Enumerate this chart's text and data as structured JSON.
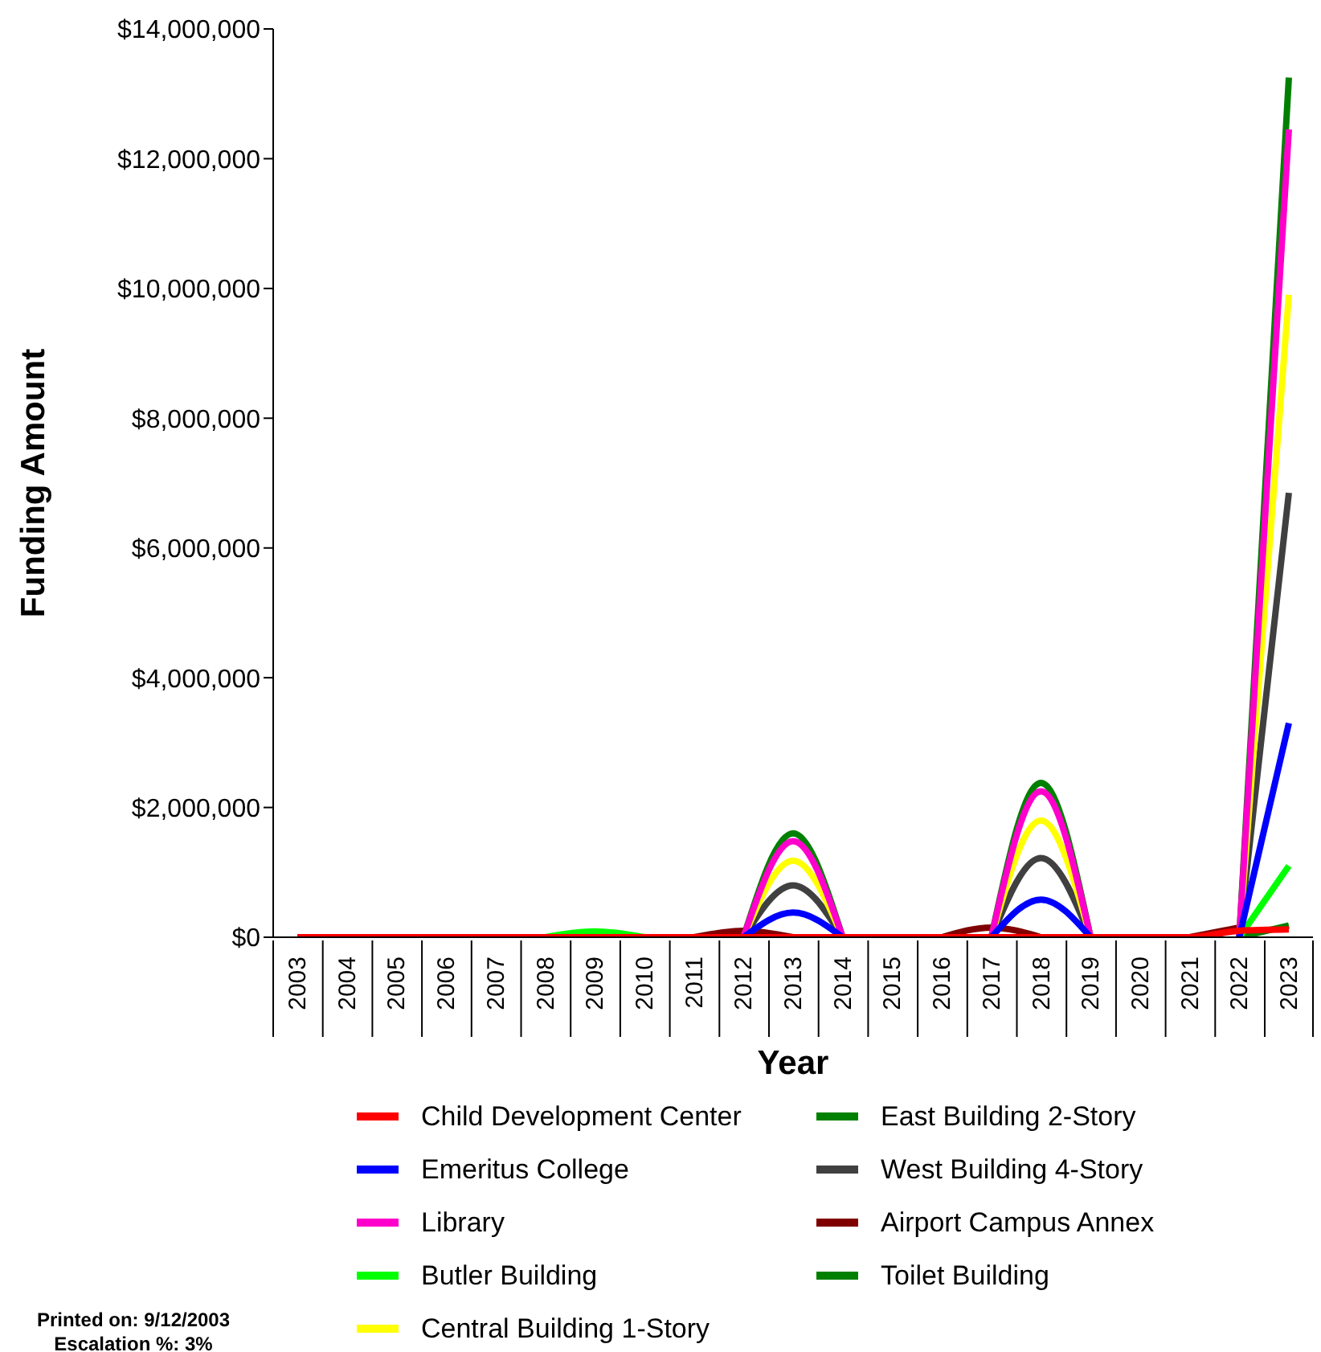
{
  "chart_data": {
    "type": "line",
    "xlabel": "Year",
    "ylabel": "Funding Amount",
    "categories": [
      "2003",
      "2004",
      "2005",
      "2006",
      "2007",
      "2008",
      "2009",
      "2010",
      "2011",
      "2012",
      "2013",
      "2014",
      "2015",
      "2016",
      "2017",
      "2018",
      "2019",
      "2020",
      "2021",
      "2022",
      "2023"
    ],
    "series": [
      {
        "name": "Child Development Center",
        "color": "#ff0000",
        "values": [
          0,
          0,
          0,
          0,
          0,
          0,
          0,
          0,
          0,
          0,
          0,
          0,
          0,
          0,
          0,
          0,
          0,
          0,
          0,
          100000,
          120000
        ]
      },
      {
        "name": "Emeritus College",
        "color": "#0000ff",
        "values": [
          null,
          null,
          null,
          null,
          null,
          null,
          null,
          null,
          null,
          0,
          380000,
          0,
          null,
          null,
          0,
          580000,
          0,
          null,
          null,
          0,
          3300000
        ]
      },
      {
        "name": "Library",
        "color": "#ff00cc",
        "values": [
          null,
          null,
          null,
          null,
          null,
          null,
          null,
          null,
          null,
          0,
          1480000,
          0,
          null,
          null,
          0,
          2250000,
          0,
          null,
          null,
          0,
          12450000
        ]
      },
      {
        "name": "Butler Building",
        "color": "#00ff00",
        "values": [
          null,
          null,
          null,
          null,
          null,
          0,
          90000,
          0,
          null,
          null,
          null,
          null,
          null,
          null,
          null,
          null,
          null,
          null,
          null,
          0,
          1100000
        ]
      },
      {
        "name": "Central Building 1-Story",
        "color": "#ffff00",
        "values": [
          null,
          null,
          null,
          null,
          null,
          null,
          null,
          null,
          null,
          0,
          1180000,
          0,
          null,
          null,
          0,
          1800000,
          0,
          null,
          null,
          0,
          9900000
        ]
      },
      {
        "name": "East Building 2-Story",
        "color": "#008000",
        "values": [
          null,
          null,
          null,
          null,
          null,
          null,
          null,
          null,
          null,
          0,
          1600000,
          0,
          null,
          null,
          0,
          2380000,
          0,
          null,
          null,
          0,
          13250000
        ]
      },
      {
        "name": "West Building 4-Story",
        "color": "#404040",
        "values": [
          null,
          null,
          null,
          null,
          null,
          null,
          null,
          null,
          null,
          0,
          800000,
          0,
          null,
          null,
          0,
          1220000,
          0,
          null,
          null,
          0,
          6850000
        ]
      },
      {
        "name": "Airport Campus Annex",
        "color": "#800000",
        "values": [
          null,
          null,
          null,
          null,
          null,
          null,
          null,
          null,
          0,
          100000,
          0,
          null,
          null,
          0,
          150000,
          0,
          null,
          null,
          0,
          150000,
          null
        ]
      },
      {
        "name": "Toilet Building",
        "color": "#008000",
        "values": [
          null,
          null,
          null,
          null,
          null,
          null,
          null,
          null,
          null,
          null,
          null,
          null,
          null,
          null,
          null,
          null,
          null,
          null,
          null,
          0,
          180000
        ]
      }
    ],
    "ylim": [
      0,
      14000000
    ],
    "yticks": [
      {
        "value": 0,
        "label": "$0"
      },
      {
        "value": 2000000,
        "label": "$2,000,000"
      },
      {
        "value": 4000000,
        "label": "$4,000,000"
      },
      {
        "value": 6000000,
        "label": "$6,000,000"
      },
      {
        "value": 8000000,
        "label": "$8,000,000"
      },
      {
        "value": 10000000,
        "label": "$10,000,000"
      },
      {
        "value": 12000000,
        "label": "$12,000,000"
      },
      {
        "value": 14000000,
        "label": "$14,000,000"
      }
    ],
    "grid": false,
    "legend": "bottom",
    "annotations": [
      "Printed on: 9/12/2003",
      "Escalation %: 3%"
    ]
  }
}
